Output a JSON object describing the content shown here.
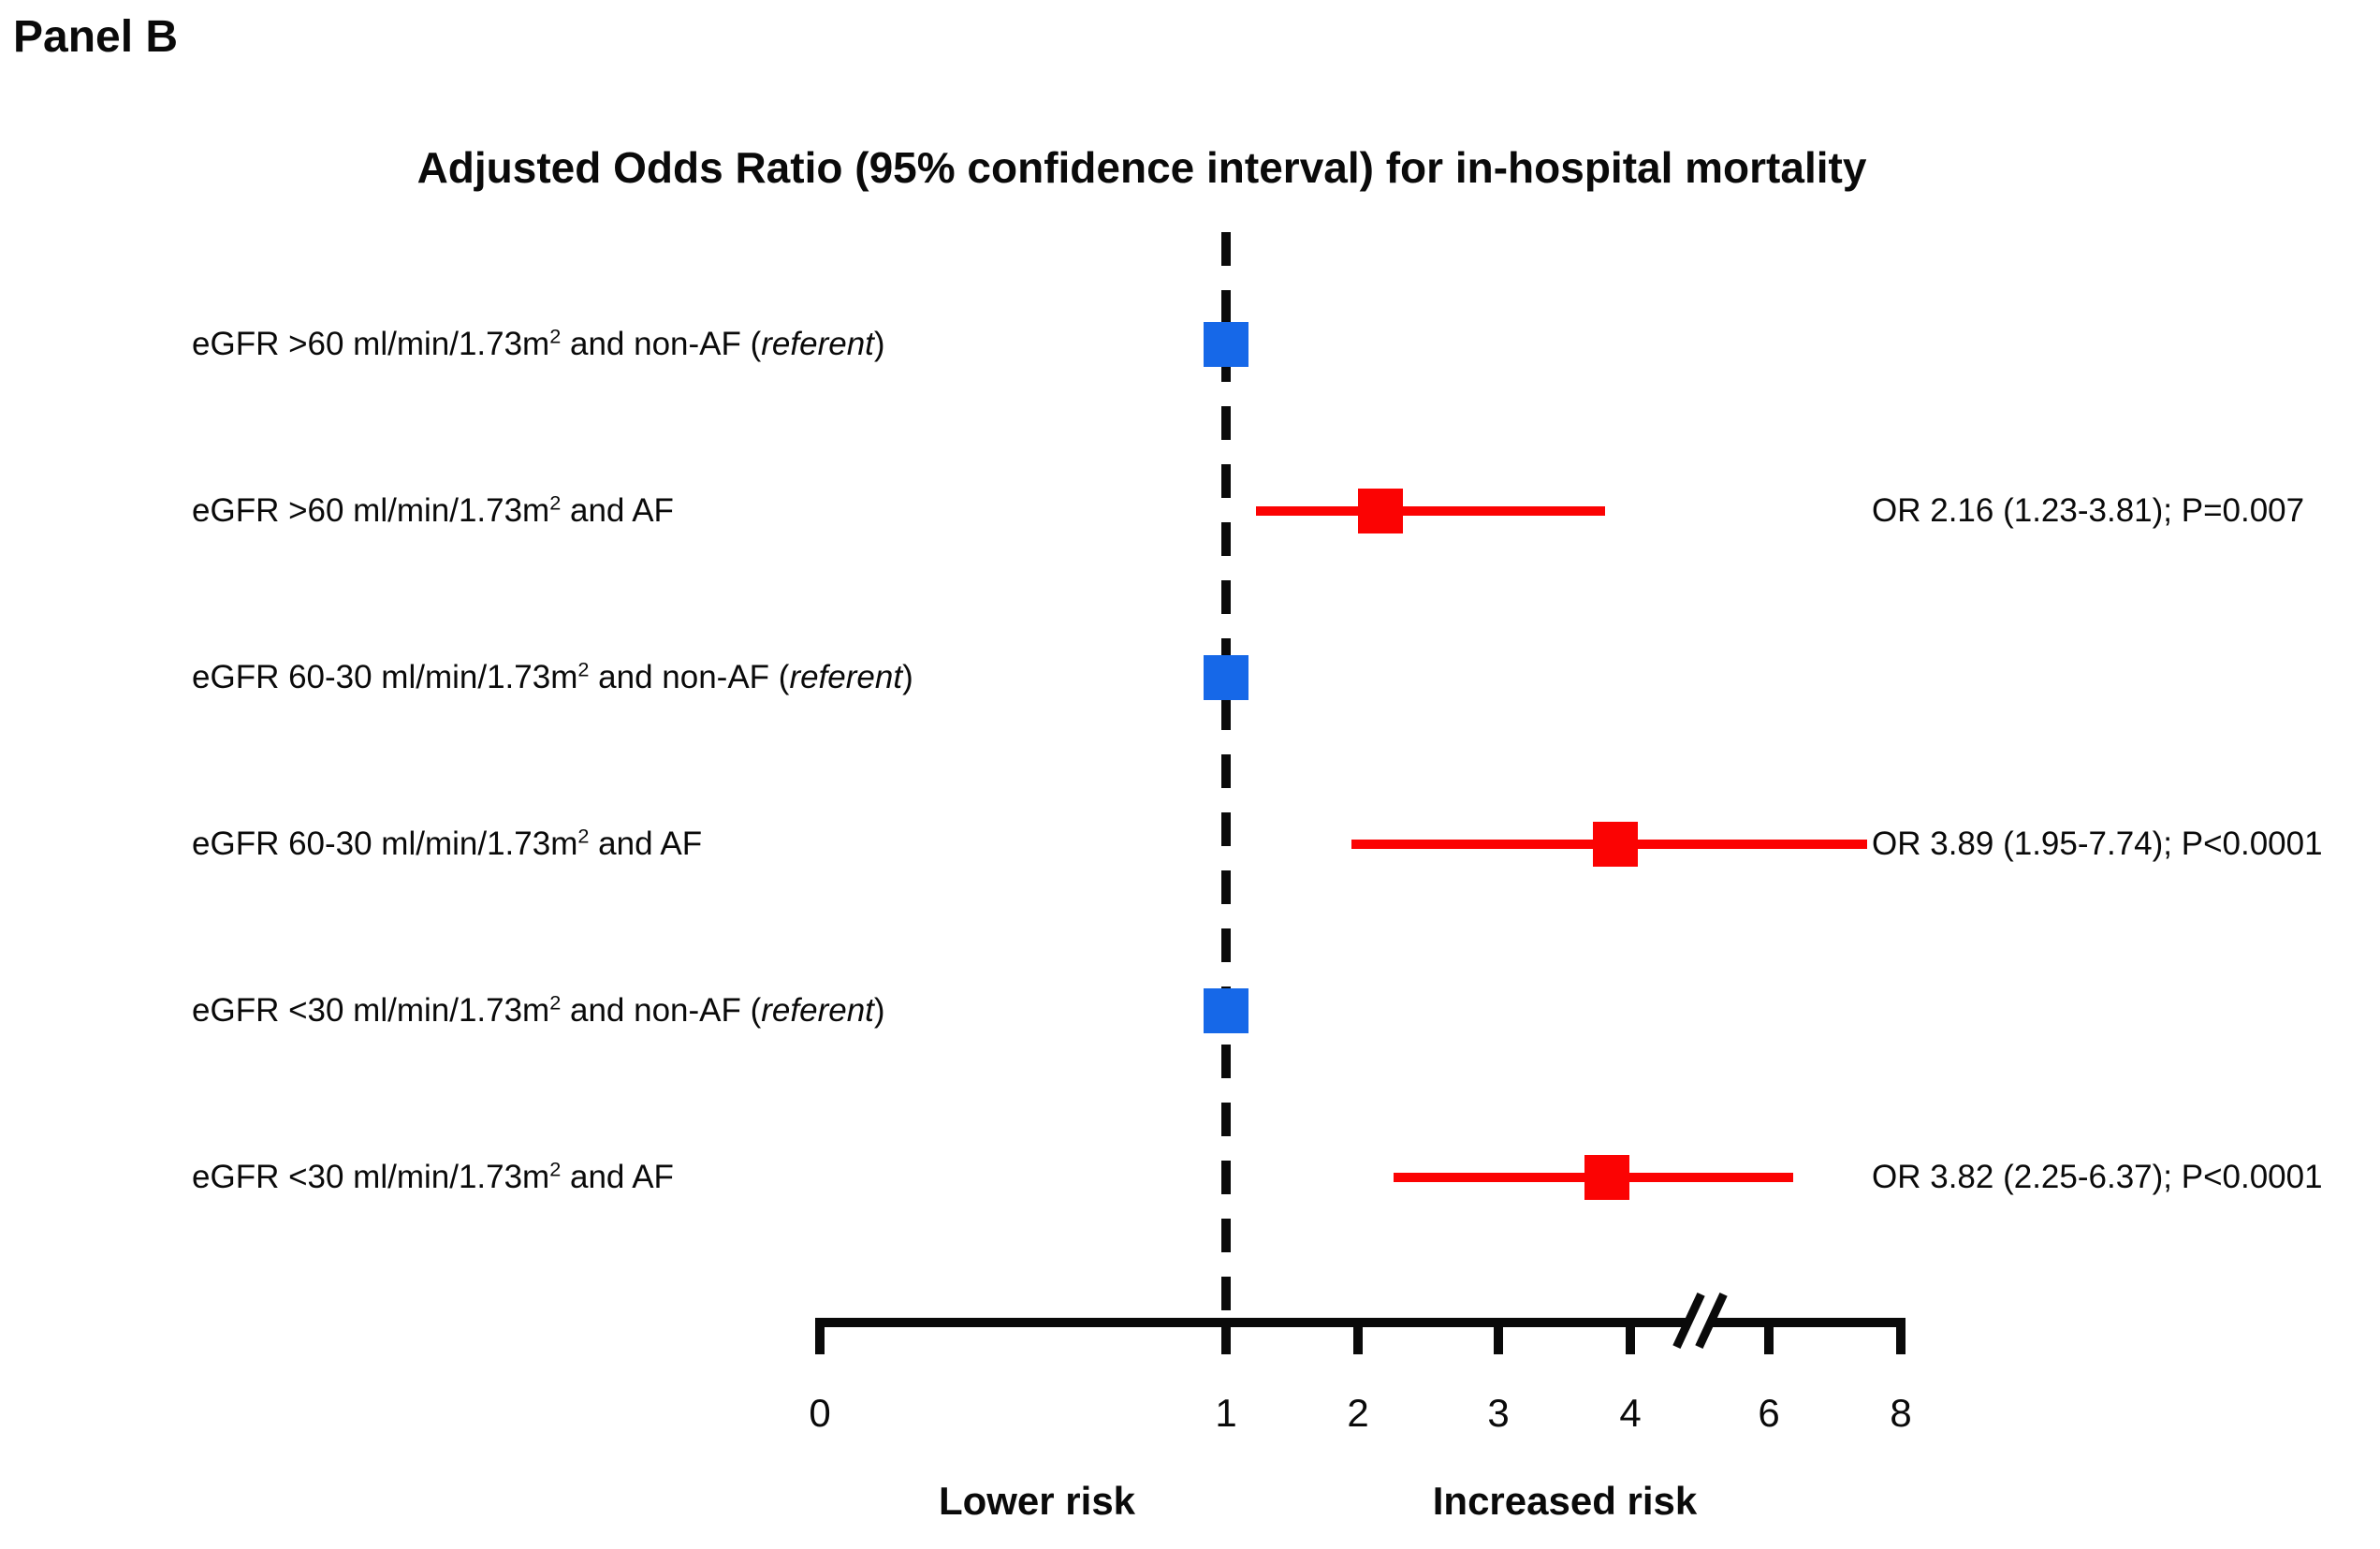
{
  "chart_data": {
    "type": "forest",
    "panel_label": "Panel B",
    "title": "Adjusted Odds Ratio (95% confidence interval) for in-hospital mortality",
    "x_tick_labels": [
      "0",
      "1",
      "2",
      "3",
      "4",
      "6",
      "8"
    ],
    "x_tick_values": [
      0,
      1,
      2,
      3,
      4,
      6,
      8
    ],
    "axis_break_between": [
      4,
      6
    ],
    "reference_value": 1,
    "direction_labels": {
      "lower": "Lower risk",
      "higher": "Increased risk"
    },
    "rows": [
      {
        "type": "referent",
        "label_pre": "eGFR >60 ml/min/1.73m",
        "label_sup": "2",
        "label_mid": " and non-AF (",
        "label_italic": "referent",
        "label_end": ")",
        "value": 1
      },
      {
        "type": "estimate",
        "label_pre": "eGFR >60 ml/min/1.73m",
        "label_sup": "2",
        "label_mid": " and AF",
        "label_italic": "",
        "label_end": "",
        "value": 2.16,
        "ci_low": 1.23,
        "ci_high": 3.81,
        "p_value": "P=0.007",
        "annotation": "OR 2.16 (1.23-3.81); P=0.007"
      },
      {
        "type": "referent",
        "label_pre": "eGFR 60-30 ml/min/1.73m",
        "label_sup": "2",
        "label_mid": " and non-AF (",
        "label_italic": "referent",
        "label_end": ")",
        "value": 1
      },
      {
        "type": "estimate",
        "label_pre": "eGFR 60-30 ml/min/1.73m",
        "label_sup": "2",
        "label_mid": " and AF",
        "label_italic": "",
        "label_end": "",
        "value": 3.89,
        "ci_low": 1.95,
        "ci_high": 7.74,
        "p_value": "P<0.0001",
        "annotation": "OR 3.89 (1.95-7.74); P<0.0001"
      },
      {
        "type": "referent",
        "label_pre": "eGFR <30 ml/min/1.73m",
        "label_sup": "2",
        "label_mid": " and non-AF (",
        "label_italic": "referent",
        "label_end": ")",
        "value": 1
      },
      {
        "type": "estimate",
        "label_pre": "eGFR <30 ml/min/1.73m",
        "label_sup": "2",
        "label_mid": " and AF",
        "label_italic": "",
        "label_end": "",
        "value": 3.82,
        "ci_low": 2.25,
        "ci_high": 6.37,
        "p_value": "P<0.0001",
        "annotation": "OR 3.82 (2.25-6.37); P<0.0001"
      }
    ],
    "colors": {
      "referent_marker": "#1668e8",
      "estimate_marker": "#fb0303",
      "ci_line": "#fb0303",
      "text": "#0a0a0a"
    }
  }
}
